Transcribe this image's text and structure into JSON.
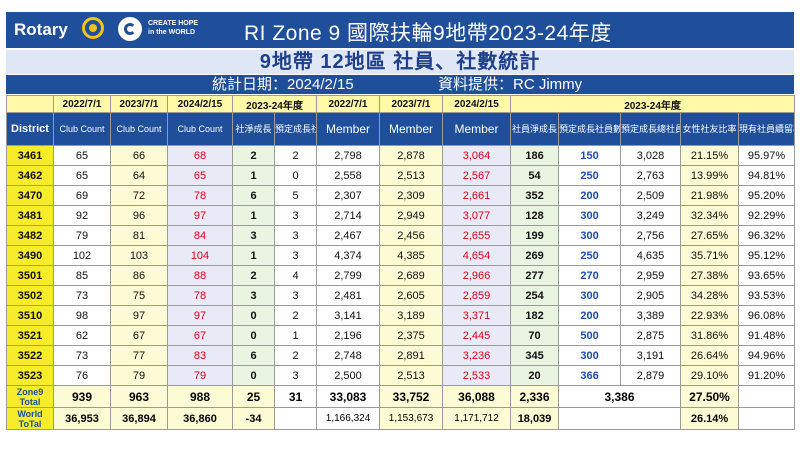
{
  "header": {
    "logo_text": "Rotary",
    "hope_line1": "CREATE HOPE",
    "hope_line2": "in the WORLD",
    "title": "RI Zone 9   國際扶輪9地帶2023-24年度"
  },
  "subtitle": "9地帶 12地區 社員、社數統計",
  "info": {
    "date": "統計日期：2024/2/15",
    "source": "資料提供：RC Jimmy"
  },
  "columns_top": [
    "2022/7/1",
    "2023/7/1",
    "2024/2/15",
    "2023-24年度",
    "2022/7/1",
    "2023/7/1",
    "2024/2/15",
    "2023-24年度"
  ],
  "columns": [
    "District",
    "Club Count",
    "Club Count",
    "Club Count",
    "社淨成長",
    "預定成長社數",
    "Member",
    "Member",
    "Member",
    "社員淨成長",
    "預定成長社員數",
    "預定成長總社員數",
    "女性社友比率",
    "現有社員續留率"
  ],
  "rows": [
    [
      "3461",
      "65",
      "66",
      "68",
      "2",
      "2",
      "2,798",
      "2,878",
      "3,064",
      "186",
      "150",
      "3,028",
      "21.15%",
      "95.97%"
    ],
    [
      "3462",
      "65",
      "64",
      "65",
      "1",
      "0",
      "2,558",
      "2,513",
      "2,567",
      "54",
      "250",
      "2,763",
      "13.99%",
      "94.81%"
    ],
    [
      "3470",
      "69",
      "72",
      "78",
      "6",
      "5",
      "2,307",
      "2,309",
      "2,661",
      "352",
      "200",
      "2,509",
      "21.98%",
      "95.20%"
    ],
    [
      "3481",
      "92",
      "96",
      "97",
      "1",
      "3",
      "2,714",
      "2,949",
      "3,077",
      "128",
      "300",
      "3,249",
      "32.34%",
      "92.29%"
    ],
    [
      "3482",
      "79",
      "81",
      "84",
      "3",
      "3",
      "2,467",
      "2,456",
      "2,655",
      "199",
      "300",
      "2,756",
      "27.65%",
      "96.32%"
    ],
    [
      "3490",
      "102",
      "103",
      "104",
      "1",
      "3",
      "4,374",
      "4,385",
      "4,654",
      "269",
      "250",
      "4,635",
      "35.71%",
      "95.12%"
    ],
    [
      "3501",
      "85",
      "86",
      "88",
      "2",
      "4",
      "2,799",
      "2,689",
      "2,966",
      "277",
      "270",
      "2,959",
      "27.38%",
      "93.65%"
    ],
    [
      "3502",
      "73",
      "75",
      "78",
      "3",
      "3",
      "2,481",
      "2,605",
      "2,859",
      "254",
      "300",
      "2,905",
      "34.28%",
      "93.53%"
    ],
    [
      "3510",
      "98",
      "97",
      "97",
      "0",
      "2",
      "3,141",
      "3,189",
      "3,371",
      "182",
      "200",
      "3,389",
      "22.93%",
      "96.08%"
    ],
    [
      "3521",
      "62",
      "67",
      "67",
      "0",
      "1",
      "2,196",
      "2,375",
      "2,445",
      "70",
      "500",
      "2,875",
      "31.86%",
      "91.48%"
    ],
    [
      "3522",
      "73",
      "77",
      "83",
      "6",
      "2",
      "2,748",
      "2,891",
      "3,236",
      "345",
      "300",
      "3,191",
      "26.64%",
      "94.96%"
    ],
    [
      "3523",
      "76",
      "79",
      "79",
      "0",
      "3",
      "2,500",
      "2,513",
      "2,533",
      "20",
      "366",
      "2,879",
      "29.10%",
      "91.20%"
    ]
  ],
  "zone_total": {
    "label": "Zone9 Total",
    "values": [
      "939",
      "963",
      "988",
      "25",
      "31",
      "33,083",
      "33,752",
      "36,088",
      "2,336",
      "3,386",
      "",
      "27.50%",
      ""
    ]
  },
  "world_total": {
    "label": "World ToTal",
    "values": [
      "36,953",
      "36,894",
      "36,860",
      "-34",
      "",
      "1,166,324",
      "1,153,673",
      "1,171,712",
      "18,039",
      "",
      "",
      "26.14%",
      ""
    ]
  }
}
